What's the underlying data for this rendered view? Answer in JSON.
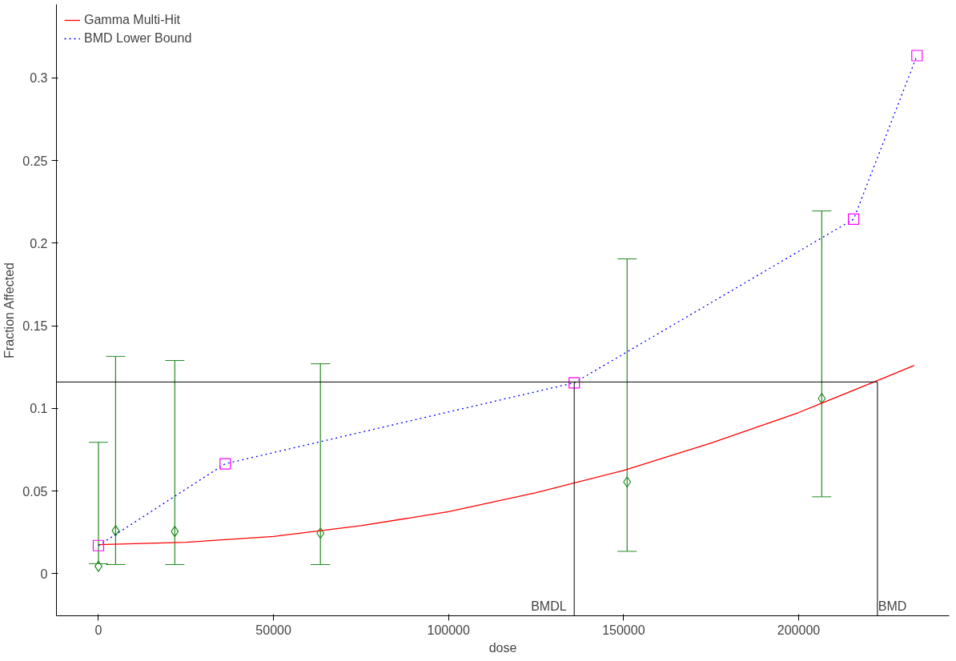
{
  "chart_data": {
    "type": "scatter",
    "xlabel": "dose",
    "ylabel": "Fraction Affected",
    "xlim": [
      -12000,
      243000
    ],
    "ylim": [
      -0.0255,
      0.3445
    ],
    "xticks": [
      0,
      50000,
      100000,
      150000,
      200000
    ],
    "yticks": [
      0,
      0.05,
      0.1,
      0.15,
      0.2,
      0.25,
      0.3
    ],
    "grid": false,
    "legend": "top left",
    "series": [
      {
        "marker": "diamond",
        "color": "#228b22",
        "x": [
          0,
          4900,
          21800,
          63400,
          151000,
          206600
        ],
        "values": [
          0.0045,
          0.026,
          0.0255,
          0.0245,
          0.0555,
          0.106
        ],
        "errors": [
          [
            0.006,
            0.0795
          ],
          [
            0.0055,
            0.1315
          ],
          [
            0.0055,
            0.129
          ],
          [
            0.0055,
            0.127
          ],
          [
            0.0135,
            0.1905
          ],
          [
            0.0465,
            0.2195
          ]
        ]
      },
      {
        "type": "line",
        "name": "Gamma Multi-Hit",
        "color": "#ff0000",
        "line_style": "solid",
        "marker": "none",
        "x": [
          0,
          25000,
          50000,
          75000,
          100000,
          125000,
          150000,
          175000,
          200000,
          225000,
          233000
        ],
        "values": [
          0.0175,
          0.019,
          0.0225,
          0.029,
          0.0375,
          0.049,
          0.0625,
          0.079,
          0.0975,
          0.119,
          0.126
        ]
      },
      {
        "type": "line",
        "name": "BMD Lower Bound",
        "color": "#0000ff",
        "colors": [
          "#ff00ff",
          "#ff00ff",
          "#ff00ff",
          "#ff00ff",
          "#ff00ff"
        ],
        "line_style": "dotted",
        "marker": "square",
        "x": [
          0,
          36200,
          135900,
          215700,
          233800
        ],
        "values": [
          0.017,
          0.0665,
          0.1155,
          0.2145,
          0.3135
        ]
      }
    ],
    "ref_lines": [
      {
        "axis": "y",
        "value": 0.116,
        "color": "#000000"
      },
      {
        "axis": "x",
        "value": 135900,
        "label": "BMDL",
        "color": "#000000"
      },
      {
        "axis": "x",
        "value": 222500,
        "label": "BMD",
        "color": "#000000"
      }
    ]
  }
}
